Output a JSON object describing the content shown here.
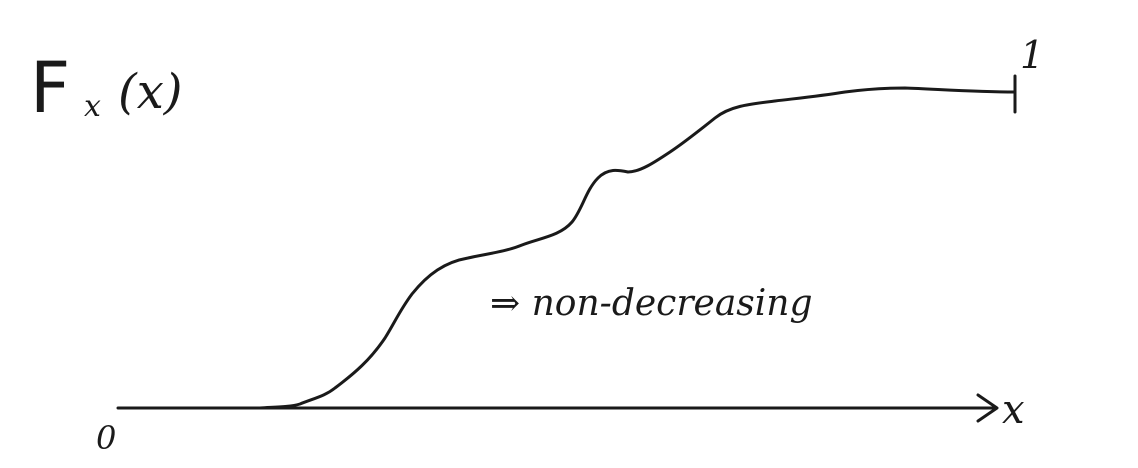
{
  "diagram": {
    "function_label": "Fx (x)",
    "function_label_main": "F",
    "function_label_sub": "x",
    "function_label_arg": "(x)",
    "upper_value_label": "1",
    "origin_label": "0",
    "x_axis_label": "x",
    "annotation": "⇒ non-decreasing",
    "ink_color": "#1a1a1a"
  }
}
